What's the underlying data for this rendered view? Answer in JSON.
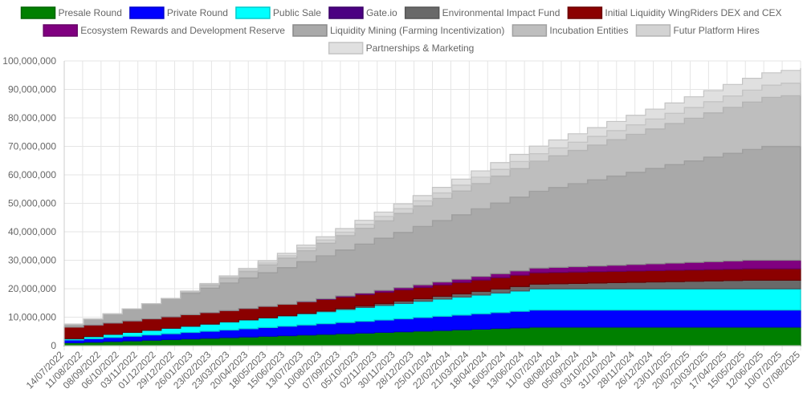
{
  "chart_data": {
    "type": "area",
    "stacked": true,
    "step": true,
    "title": "",
    "xlabel": "",
    "ylabel": "",
    "ylim": [
      0,
      100000000
    ],
    "yticks": [
      0,
      10000000,
      20000000,
      30000000,
      40000000,
      50000000,
      60000000,
      70000000,
      80000000,
      90000000,
      100000000
    ],
    "ytick_labels": [
      "0",
      "10,000,000",
      "20,000,000",
      "30,000,000",
      "40,000,000",
      "50,000,000",
      "60,000,000",
      "70,000,000",
      "80,000,000",
      "90,000,000",
      "100,000,000"
    ],
    "grid": true,
    "legend_position": "top",
    "x_tick_labels": [
      "14/07/2022",
      "11/08/2022",
      "08/09/2022",
      "06/10/2022",
      "03/11/2022",
      "01/12/2022",
      "29/12/2022",
      "26/01/2023",
      "23/02/2023",
      "23/03/2023",
      "20/04/2023",
      "18/05/2023",
      "15/06/2023",
      "13/07/2023",
      "10/08/2023",
      "07/09/2023",
      "05/10/2023",
      "02/11/2023",
      "30/11/2023",
      "28/12/2023",
      "25/01/2024",
      "22/02/2024",
      "21/03/2024",
      "18/04/2024",
      "16/05/2024",
      "13/06/2024",
      "11/07/2024",
      "08/08/2024",
      "05/09/2024",
      "03/10/2024",
      "31/10/2024",
      "28/11/2024",
      "26/12/2024",
      "23/01/2025",
      "20/02/2025",
      "20/03/2025",
      "17/04/2025",
      "15/05/2025",
      "12/06/2025",
      "10/07/2025",
      "07/08/2025"
    ],
    "series": [
      {
        "name": "Presale Round",
        "color": "#008000",
        "stroke": "#006400",
        "start": 1000000,
        "step_start_month": 1,
        "step_months": 24,
        "final": 6500000
      },
      {
        "name": "Private Round",
        "color": "#0000ff",
        "stroke": "#0000cc",
        "start": 1000000,
        "step_start_month": 1,
        "step_months": 24,
        "final": 6000000
      },
      {
        "name": "Public Sale",
        "color": "#00ffff",
        "stroke": "#00cccc",
        "start": 500000,
        "step_start_month": 1,
        "step_months": 24,
        "final": 7500000
      },
      {
        "name": "Gate.io",
        "color": "#4b0082",
        "stroke": "#3a0066",
        "start": 0,
        "step_start_month": 0,
        "step_months": 0,
        "final": 0
      },
      {
        "name": "Environmental Impact Fund",
        "color": "#696969",
        "stroke": "#555555",
        "start": 0,
        "step_start_month": 12,
        "step_months": 24,
        "final": 3000000
      },
      {
        "name": "Initial Liquidity WingRiders DEX and CEX",
        "color": "#8b0000",
        "stroke": "#6a0000",
        "start": 4000000,
        "step_start_month": 0,
        "step_months": 0,
        "final": 4000000
      },
      {
        "name": "Ecosystem Rewards and Development Reserve",
        "color": "#800080",
        "stroke": "#660066",
        "start": 0,
        "step_start_month": 12,
        "step_months": 24,
        "final": 3000000
      },
      {
        "name": "Liquidity Mining (Farming Incentivization)",
        "color": "#a9a9a9",
        "stroke": "#8a8a8a",
        "start": 1000000,
        "step_start_month": 1,
        "step_months": 36,
        "final": 40000000
      },
      {
        "name": "Incubation Entities",
        "color": "#bebebe",
        "stroke": "#a0a0a0",
        "start": 0,
        "step_start_month": 6,
        "step_months": 36,
        "final": 20000000
      },
      {
        "name": "Futur Platform Hires",
        "color": "#d3d3d3",
        "stroke": "#b5b5b5",
        "start": 0,
        "step_start_month": 6,
        "step_months": 36,
        "final": 5000000
      },
      {
        "name": "Partnerships & Marketing",
        "color": "#e0e0e0",
        "stroke": "#c4c4c4",
        "start": 0,
        "step_start_month": 6,
        "step_months": 36,
        "final": 5000000
      }
    ]
  }
}
